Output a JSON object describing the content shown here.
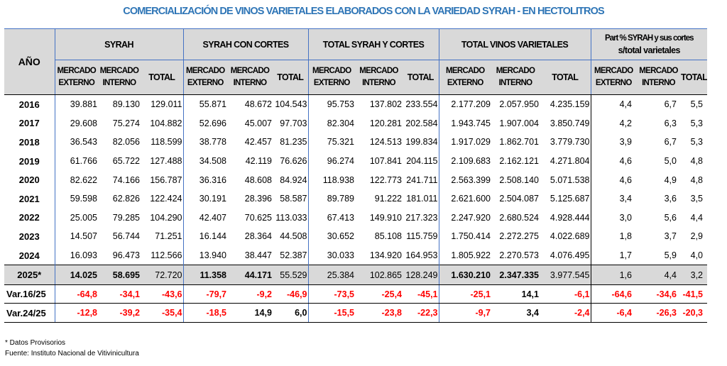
{
  "title": "COMERCIALIZACIÓN DE VINOS VARIETALES ELABORADOS CON LA VARIEDAD SYRAH - EN HECTOLITROS",
  "header": {
    "year_label": "AÑO",
    "groups": [
      "SYRAH",
      "SYRAH CON CORTES",
      "TOTAL SYRAH Y CORTES",
      "TOTAL VINOS VARIETALES"
    ],
    "part_group": [
      "Part % SYRAH y sus cortes",
      "s/total varietales"
    ],
    "sub_mercado": "MERCADO",
    "sub_externo": "EXTERNO",
    "sub_interno": "INTERNO",
    "sub_total": "TOTAL"
  },
  "rows": [
    {
      "year": "2016",
      "values": [
        "39.881",
        "89.130",
        "129.011",
        "55.871",
        "48.672",
        "104.543",
        "95.753",
        "137.802",
        "233.554",
        "2.177.209",
        "2.057.950",
        "4.235.159",
        "4,4",
        "6,7",
        "5,5"
      ]
    },
    {
      "year": "2017",
      "values": [
        "29.608",
        "75.274",
        "104.882",
        "52.696",
        "45.007",
        "97.703",
        "82.304",
        "120.281",
        "202.584",
        "1.943.745",
        "1.907.004",
        "3.850.749",
        "4,2",
        "6,3",
        "5,3"
      ]
    },
    {
      "year": "2018",
      "values": [
        "36.543",
        "82.056",
        "118.599",
        "38.778",
        "42.457",
        "81.235",
        "75.321",
        "124.513",
        "199.834",
        "1.917.029",
        "1.862.701",
        "3.779.730",
        "3,9",
        "6,7",
        "5,3"
      ]
    },
    {
      "year": "2019",
      "values": [
        "61.766",
        "65.722",
        "127.488",
        "34.508",
        "42.119",
        "76.626",
        "96.274",
        "107.841",
        "204.115",
        "2.109.683",
        "2.162.121",
        "4.271.804",
        "4,6",
        "5,0",
        "4,8"
      ]
    },
    {
      "year": "2020",
      "values": [
        "82.622",
        "74.166",
        "156.787",
        "36.316",
        "48.608",
        "84.924",
        "118.938",
        "122.773",
        "241.711",
        "2.563.399",
        "2.508.140",
        "5.071.538",
        "4,6",
        "4,9",
        "4,8"
      ]
    },
    {
      "year": "2021",
      "values": [
        "59.598",
        "62.826",
        "122.424",
        "30.191",
        "28.396",
        "58.587",
        "89.789",
        "91.222",
        "181.011",
        "2.621.600",
        "2.504.087",
        "5.125.687",
        "3,4",
        "3,6",
        "3,5"
      ]
    },
    {
      "year": "2022",
      "values": [
        "25.005",
        "79.285",
        "104.290",
        "42.407",
        "70.625",
        "113.033",
        "67.413",
        "149.910",
        "217.323",
        "2.247.920",
        "2.680.524",
        "4.928.444",
        "3,0",
        "5,6",
        "4,4"
      ]
    },
    {
      "year": "2023",
      "values": [
        "14.507",
        "56.744",
        "71.251",
        "16.144",
        "28.364",
        "44.508",
        "30.652",
        "85.108",
        "115.759",
        "1.750.414",
        "2.272.275",
        "4.022.689",
        "1,8",
        "3,7",
        "2,9"
      ]
    },
    {
      "year": "2024",
      "values": [
        "16.093",
        "96.473",
        "112.566",
        "13.940",
        "38.447",
        "52.387",
        "30.033",
        "134.920",
        "164.953",
        "1.805.922",
        "2.270.573",
        "4.076.495",
        "1,7",
        "5,9",
        "4,0"
      ]
    }
  ],
  "provisional_row": {
    "year": "2025*",
    "values": [
      "14.025",
      "58.695",
      "72.720",
      "11.358",
      "44.171",
      "55.529",
      "25.384",
      "102.865",
      "128.249",
      "1.630.210",
      "2.347.335",
      "3.977.545",
      "1,6",
      "4,4",
      "3,2"
    ]
  },
  "variation_rows": [
    {
      "label": "Var.16/25",
      "values": [
        "-64,8",
        "-34,1",
        "-43,6",
        "-79,7",
        "-9,2",
        "-46,9",
        "-73,5",
        "-25,4",
        "-45,1",
        "-25,1",
        "14,1",
        "-6,1",
        "-64,6",
        "-34,6",
        "-41,5"
      ]
    },
    {
      "label": "Var.24/25",
      "values": [
        "-12,8",
        "-39,2",
        "-35,4",
        "-18,5",
        "14,9",
        "6,0",
        "-15,5",
        "-23,8",
        "-22,3",
        "-9,7",
        "3,4",
        "-2,4",
        "-6,4",
        "-26,3",
        "-20,3"
      ]
    }
  ],
  "footnotes": [
    "* Datos Provisorios",
    "Fuente: Instituto Nacional de Vitivinicultura"
  ],
  "colors": {
    "title": "#2e75b6",
    "header_bg": "#d9d9d9",
    "negative": "#ff0000",
    "border_accent": "#4472c4"
  }
}
